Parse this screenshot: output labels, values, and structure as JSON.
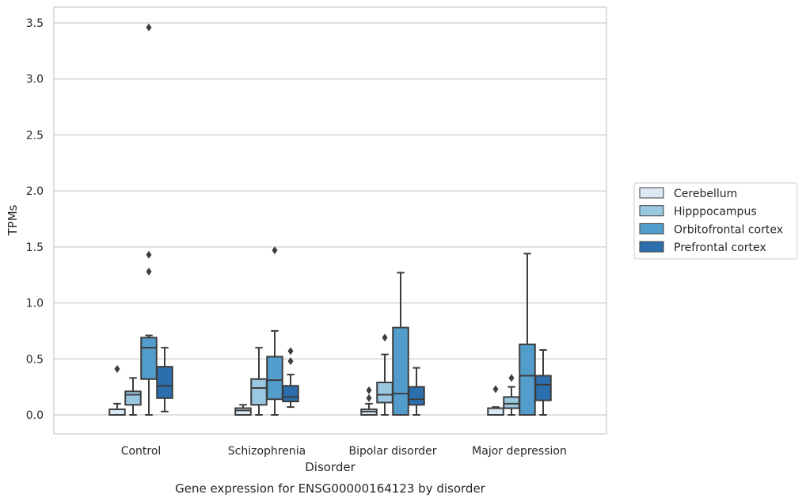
{
  "chart_data": {
    "type": "box",
    "title": "",
    "caption": "Gene expression for ENSG00000164123 by disorder",
    "xlabel": "Disorder",
    "ylabel": "TPMs",
    "ylim": [
      -0.17,
      3.64
    ],
    "yticks": [
      "0.0",
      "0.5",
      "1.0",
      "1.5",
      "2.0",
      "2.5",
      "3.0",
      "3.5"
    ],
    "categories": [
      "Control",
      "Schizophrenia",
      "Bipolar disorder",
      "Major depression"
    ],
    "grid": "horizontal",
    "legend_position": "right",
    "series": [
      {
        "name": "Cerebellum",
        "color": "#dbe9f6",
        "boxes": [
          {
            "whislo": 0.0,
            "q1": 0.0,
            "med": 0.0,
            "q3": 0.05,
            "whishi": 0.1,
            "fliers": [
              0.41
            ]
          },
          {
            "whislo": 0.0,
            "q1": 0.0,
            "med": 0.04,
            "q3": 0.06,
            "whishi": 0.09,
            "fliers": []
          },
          {
            "whislo": 0.0,
            "q1": 0.0,
            "med": 0.03,
            "q3": 0.05,
            "whishi": 0.1,
            "fliers": [
              0.15,
              0.22
            ]
          },
          {
            "whislo": 0.0,
            "q1": 0.0,
            "med": 0.0,
            "q3": 0.06,
            "whishi": 0.07,
            "fliers": [
              0.23
            ]
          }
        ]
      },
      {
        "name": "Hipppocampus",
        "color": "#9ac8e0",
        "boxes": [
          {
            "whislo": 0.0,
            "q1": 0.09,
            "med": 0.18,
            "q3": 0.21,
            "whishi": 0.33,
            "fliers": []
          },
          {
            "whislo": 0.0,
            "q1": 0.09,
            "med": 0.24,
            "q3": 0.32,
            "whishi": 0.6,
            "fliers": []
          },
          {
            "whislo": 0.0,
            "q1": 0.11,
            "med": 0.18,
            "q3": 0.29,
            "whishi": 0.54,
            "fliers": [
              0.69
            ]
          },
          {
            "whislo": 0.0,
            "q1": 0.06,
            "med": 0.1,
            "q3": 0.16,
            "whishi": 0.25,
            "fliers": [
              0.33
            ]
          }
        ]
      },
      {
        "name": "Orbitofrontal cortex",
        "color": "#529dcc",
        "boxes": [
          {
            "whislo": 0.0,
            "q1": 0.32,
            "med": 0.6,
            "q3": 0.69,
            "whishi": 0.71,
            "fliers": [
              1.28,
              1.43,
              3.46
            ]
          },
          {
            "whislo": 0.0,
            "q1": 0.14,
            "med": 0.31,
            "q3": 0.52,
            "whishi": 0.75,
            "fliers": [
              1.47
            ]
          },
          {
            "whislo": 0.0,
            "q1": 0.0,
            "med": 0.19,
            "q3": 0.78,
            "whishi": 1.27,
            "fliers": []
          },
          {
            "whislo": 0.0,
            "q1": 0.0,
            "med": 0.35,
            "q3": 0.63,
            "whishi": 1.44,
            "fliers": []
          }
        ]
      },
      {
        "name": "Prefrontal cortex",
        "color": "#2b6fae",
        "boxes": [
          {
            "whislo": 0.03,
            "q1": 0.15,
            "med": 0.26,
            "q3": 0.43,
            "whishi": 0.6,
            "fliers": []
          },
          {
            "whislo": 0.07,
            "q1": 0.12,
            "med": 0.16,
            "q3": 0.26,
            "whishi": 0.36,
            "fliers": [
              0.48,
              0.57
            ]
          },
          {
            "whislo": 0.0,
            "q1": 0.09,
            "med": 0.14,
            "q3": 0.25,
            "whishi": 0.42,
            "fliers": []
          },
          {
            "whislo": 0.0,
            "q1": 0.13,
            "med": 0.27,
            "q3": 0.35,
            "whishi": 0.58,
            "fliers": []
          }
        ]
      }
    ]
  }
}
